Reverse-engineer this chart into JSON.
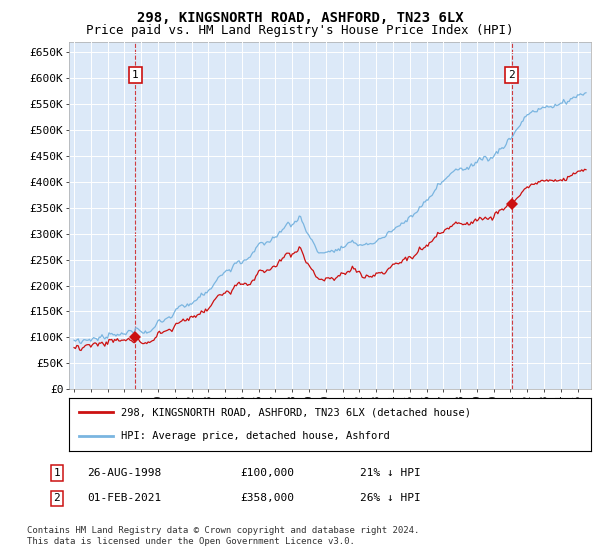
{
  "title": "298, KINGSNORTH ROAD, ASHFORD, TN23 6LX",
  "subtitle": "Price paid vs. HM Land Registry's House Price Index (HPI)",
  "ylabel_ticks": [
    "£0",
    "£50K",
    "£100K",
    "£150K",
    "£200K",
    "£250K",
    "£300K",
    "£350K",
    "£400K",
    "£450K",
    "£500K",
    "£550K",
    "£600K",
    "£650K"
  ],
  "ytick_values": [
    0,
    50000,
    100000,
    150000,
    200000,
    250000,
    300000,
    350000,
    400000,
    450000,
    500000,
    550000,
    600000,
    650000
  ],
  "ylim": [
    0,
    670000
  ],
  "xlim_start": 1994.7,
  "xlim_end": 2025.8,
  "background_color": "#ffffff",
  "plot_bg": "#dce9f8",
  "hpi_color": "#7ab5e0",
  "price_color": "#cc1111",
  "sale1_date": 1998.65,
  "sale1_price": 100000,
  "sale2_date": 2021.08,
  "sale2_price": 358000,
  "legend_label1": "298, KINGSNORTH ROAD, ASHFORD, TN23 6LX (detached house)",
  "legend_label2": "HPI: Average price, detached house, Ashford",
  "annot1_label": "1",
  "annot2_label": "2",
  "table_row1": [
    "1",
    "26-AUG-1998",
    "£100,000",
    "21% ↓ HPI"
  ],
  "table_row2": [
    "2",
    "01-FEB-2021",
    "£358,000",
    "26% ↓ HPI"
  ],
  "footer": "Contains HM Land Registry data © Crown copyright and database right 2024.\nThis data is licensed under the Open Government Licence v3.0.",
  "grid_color": "#ffffff",
  "title_fontsize": 10,
  "subtitle_fontsize": 9
}
